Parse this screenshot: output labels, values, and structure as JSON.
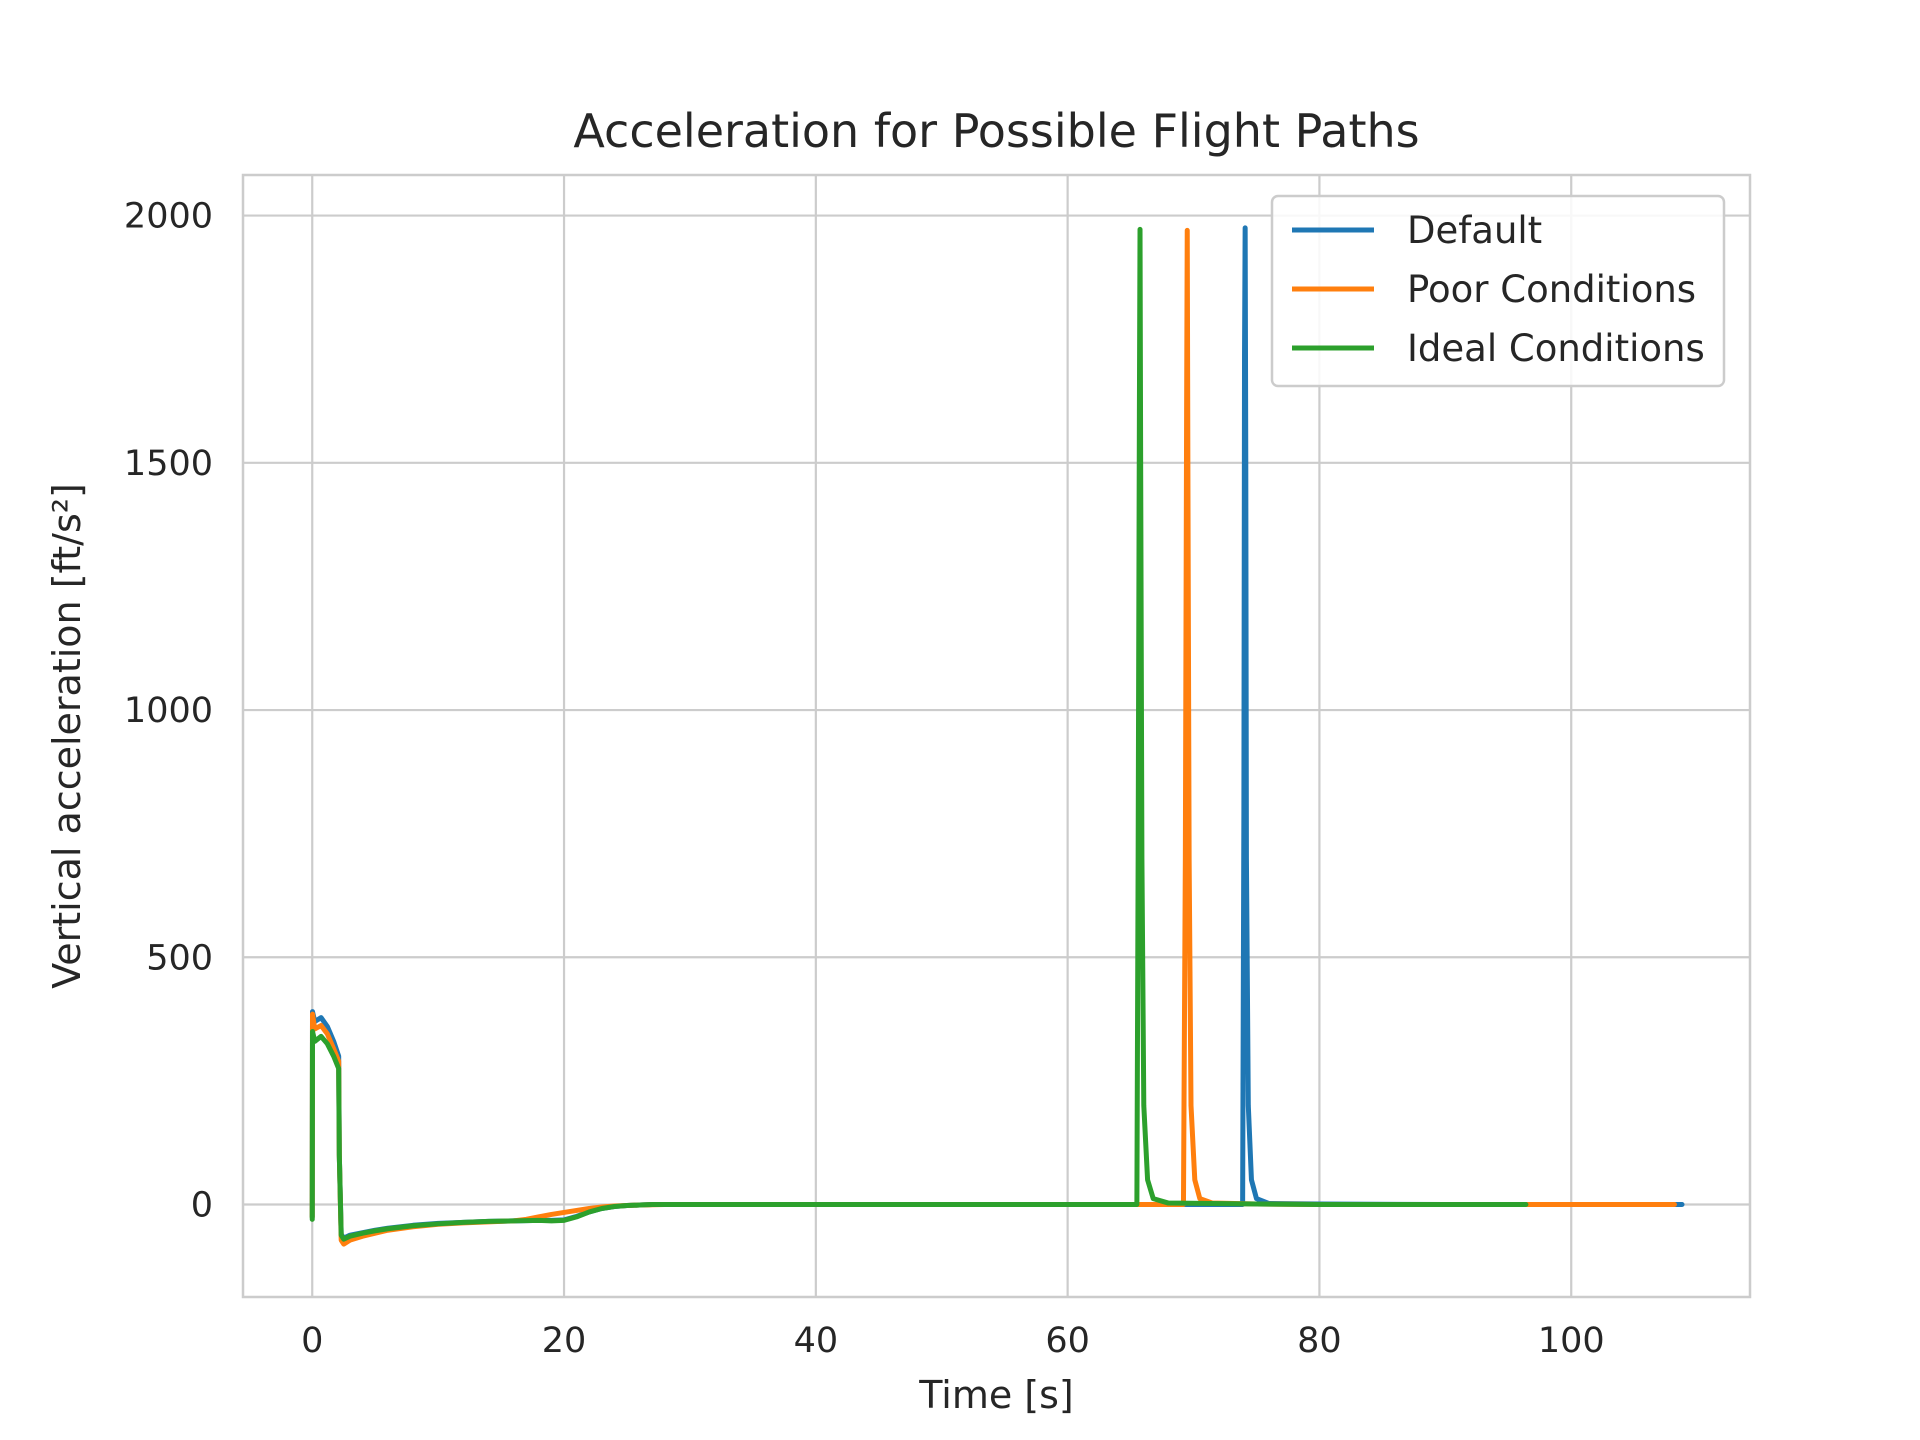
{
  "chart_data": {
    "type": "line",
    "title": "Acceleration for Possible Flight Paths",
    "xlabel": "Time [s]",
    "ylabel": "Vertical acceleration [ft/s²]",
    "xlim": [
      -5.5,
      114.2
    ],
    "ylim": [
      -187,
      2082
    ],
    "xticks": [
      0,
      20,
      40,
      60,
      80,
      100
    ],
    "yticks": [
      0,
      500,
      1000,
      1500,
      2000
    ],
    "grid": true,
    "legend_position": "top-right",
    "series": [
      {
        "name": "Default",
        "color": "#1f77b4",
        "x": [
          0,
          0.02,
          0.2,
          0.7,
          1.2,
          1.7,
          2.1,
          2.15,
          2.3,
          2.5,
          3,
          4,
          5,
          6,
          8,
          10,
          12,
          14,
          16,
          18,
          19,
          20,
          21,
          22,
          23,
          24,
          25,
          26,
          27,
          28,
          30,
          40,
          50,
          60,
          70,
          73.9,
          74.0,
          74.05,
          74.1,
          74.15,
          74.2,
          74.35,
          74.6,
          75.0,
          76,
          80,
          90,
          100,
          108.8
        ],
        "y": [
          -25,
          390,
          370,
          378,
          360,
          330,
          300,
          100,
          -60,
          -68,
          -62,
          -57,
          -52,
          -48,
          -42,
          -38,
          -36,
          -34,
          -33,
          -32,
          -32,
          -31,
          -24,
          -15,
          -8,
          -4,
          -2,
          -1,
          0,
          0,
          0,
          0,
          0,
          0,
          0,
          0,
          800,
          1720,
          1975,
          1500,
          700,
          200,
          50,
          12,
          2,
          1,
          0,
          0,
          0
        ]
      },
      {
        "name": "Poor Conditions",
        "color": "#ff7f0e",
        "x": [
          0,
          0.02,
          0.2,
          0.7,
          1.2,
          1.7,
          2.1,
          2.15,
          2.3,
          2.5,
          3,
          4,
          5,
          6,
          8,
          10,
          12,
          14,
          16,
          17,
          18,
          19,
          20,
          21,
          22,
          23,
          24,
          25,
          26,
          28,
          30,
          40,
          50,
          60,
          69.2,
          69.35,
          69.45,
          69.5,
          69.55,
          69.65,
          69.8,
          70.1,
          70.5,
          71.5,
          75,
          80,
          90,
          100,
          108.2
        ],
        "y": [
          -25,
          385,
          355,
          362,
          345,
          315,
          290,
          100,
          -72,
          -80,
          -72,
          -64,
          -58,
          -52,
          -45,
          -40,
          -37,
          -35,
          -33,
          -30,
          -25,
          -20,
          -16,
          -12,
          -8,
          -5,
          -3,
          -2,
          -1,
          0,
          0,
          0,
          0,
          0,
          0,
          700,
          1600,
          1970,
          1500,
          700,
          200,
          50,
          12,
          3,
          1,
          0,
          0,
          0,
          0
        ]
      },
      {
        "name": "Ideal Conditions",
        "color": "#2ca02c",
        "x": [
          0,
          0.02,
          0.2,
          0.7,
          1.2,
          1.7,
          2.1,
          2.15,
          2.3,
          2.5,
          3,
          4,
          5,
          6,
          8,
          10,
          12,
          14,
          16,
          18,
          19,
          20,
          21,
          22,
          23,
          24,
          25,
          26,
          27,
          28,
          30,
          40,
          50,
          60,
          65.5,
          65.6,
          65.7,
          65.75,
          65.8,
          65.9,
          66.05,
          66.35,
          66.8,
          68,
          75,
          80,
          90,
          96.4
        ],
        "y": [
          -30,
          350,
          330,
          340,
          325,
          300,
          275,
          100,
          -62,
          -70,
          -64,
          -58,
          -53,
          -49,
          -43,
          -39,
          -36,
          -34,
          -33,
          -32,
          -33,
          -32,
          -25,
          -15,
          -8,
          -4,
          -2,
          -1,
          0,
          0,
          0,
          0,
          0,
          0,
          0,
          700,
          1600,
          1972,
          1500,
          700,
          200,
          50,
          12,
          3,
          1,
          0,
          0,
          0
        ]
      }
    ]
  }
}
